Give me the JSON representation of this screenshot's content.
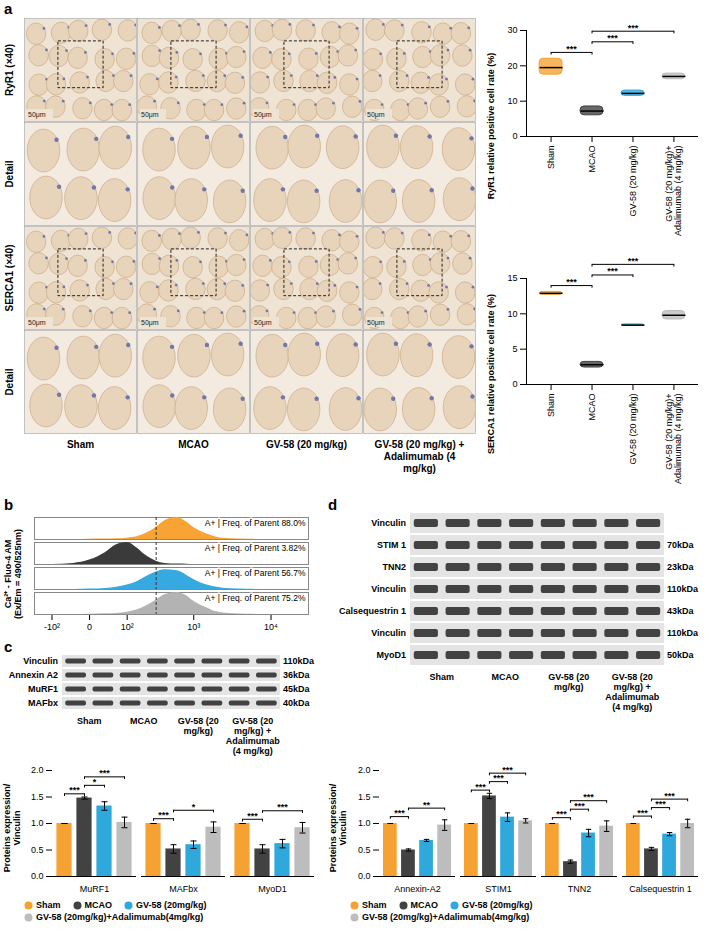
{
  "letters": [
    "a",
    "b",
    "c",
    "d"
  ],
  "groups": [
    "Sham",
    "MCAO",
    "GV-58 (20 mg/kg)",
    "GV-58 (20 mg/kg) + Adalimumab (4 mg/kg)"
  ],
  "ihc": {
    "row_labels": [
      "RyR1 (×40)",
      "Detail",
      "SERCA1 (×40)",
      "Detail"
    ],
    "scale_bar": "50μm"
  },
  "blot_c": {
    "rows": [
      {
        "label": "Vinculin",
        "size": "110kDa"
      },
      {
        "label": "Annexin A2",
        "size": "36kDa"
      },
      {
        "label": "MuRF1",
        "size": "45kDa"
      },
      {
        "label": "MAFbx",
        "size": "40kDa"
      }
    ]
  },
  "blot_d": {
    "rows": [
      {
        "label": "Vinculin"
      },
      {
        "label": "STIM 1",
        "size": "70kDa"
      },
      {
        "label": "TNN2",
        "size": "23kDa"
      },
      {
        "label": "Vinculin",
        "size": "110kDa"
      },
      {
        "label": "Calsequestrin 1",
        "size": "43kDa"
      },
      {
        "label": "Vinculin",
        "size": "110kDa"
      },
      {
        "label": "MyoD1",
        "size": "50kDa"
      }
    ]
  },
  "chart_data": [
    {
      "type": "violin",
      "y_label": "RyR1 relative positive cell rate (%)",
      "categories": [
        "Sham",
        "MCAO",
        "GV-58 (20 mg/kg)",
        "GV-58 (20 mg/kg)+ Adalimumab (4 mg/kg)"
      ],
      "values": [
        19.5,
        7.2,
        12.2,
        17.0
      ],
      "min": [
        17.5,
        6.0,
        11.5,
        16.2
      ],
      "max": [
        22.0,
        8.5,
        13.0,
        17.8
      ],
      "colors": [
        "#f5a233",
        "#424242",
        "#2fa8dc",
        "#bdbdbd"
      ],
      "ylim": [
        0,
        30
      ],
      "yticks": [
        0,
        10,
        20,
        30
      ],
      "annotations": [
        {
          "from": "Sham",
          "to": "MCAO",
          "label": "***"
        },
        {
          "from": "MCAO",
          "to": "GV-58 (20 mg/kg)",
          "label": "***"
        },
        {
          "from": "MCAO",
          "to": "GV-58 (20 mg/kg)+ Adalimumab (4 mg/kg)",
          "label": "***"
        }
      ]
    },
    {
      "type": "violin",
      "y_label": "SERCA1 relative positive cell rate (%)",
      "categories": [
        "Sham",
        "MCAO",
        "GV-58 (20 mg/kg)",
        "GV-58 (20 mg/kg)+ Adalimumab (4 mg/kg)"
      ],
      "values": [
        12.9,
        2.8,
        8.4,
        9.8
      ],
      "min": [
        12.7,
        2.4,
        8.3,
        9.2
      ],
      "max": [
        13.1,
        3.2,
        8.5,
        10.4
      ],
      "colors": [
        "#f5a233",
        "#424242",
        "#2fa8dc",
        "#bdbdbd"
      ],
      "ylim": [
        0,
        15
      ],
      "yticks": [
        0,
        5,
        10,
        15
      ],
      "annotations": [
        {
          "from": "Sham",
          "to": "MCAO",
          "label": "***"
        },
        {
          "from": "MCAO",
          "to": "GV-58 (20 mg/kg)",
          "label": "***"
        },
        {
          "from": "MCAO",
          "to": "GV-58 (20 mg/kg)+ Adalimumab (4 mg/kg)",
          "label": "***"
        }
      ]
    },
    {
      "type": "area",
      "y_label": "Ca²⁺ - Fluo-4 AM (Ex/Em = 490/525nm)",
      "x": [
        -100,
        -30,
        0,
        30,
        60,
        100,
        150,
        200,
        300,
        400,
        600,
        800,
        1000,
        1500,
        2000,
        3000,
        5000,
        10000
      ],
      "series": [
        {
          "name": "A+ | Freq. of Parent 88.0%",
          "color": "#f7a435",
          "values": [
            0,
            0,
            0.01,
            0.02,
            0.03,
            0.06,
            0.12,
            0.25,
            0.55,
            0.85,
            1.0,
            0.8,
            0.55,
            0.25,
            0.1,
            0.03,
            0.01,
            0
          ]
        },
        {
          "name": "A+ | Freq. of Parent 3.82%",
          "color": "#3a3a3a",
          "values": [
            0,
            0.05,
            0.2,
            0.55,
            0.9,
            1.0,
            0.75,
            0.45,
            0.15,
            0.05,
            0.02,
            0.01,
            0,
            0,
            0,
            0,
            0,
            0
          ]
        },
        {
          "name": "A+ | Freq. of Parent 56.7%",
          "color": "#35a9e0",
          "values": [
            0,
            0,
            0.02,
            0.05,
            0.1,
            0.2,
            0.35,
            0.55,
            0.8,
            0.9,
            0.85,
            0.65,
            0.45,
            0.2,
            0.1,
            0.03,
            0.01,
            0
          ]
        },
        {
          "name": "A+ | Freq. of Parent 75.2%",
          "color": "#b3b3b3",
          "values": [
            0,
            0,
            0.01,
            0.03,
            0.05,
            0.1,
            0.2,
            0.35,
            0.65,
            0.9,
            1.0,
            0.85,
            0.6,
            0.3,
            0.12,
            0.04,
            0.01,
            0
          ]
        }
      ],
      "xlim": [
        -200,
        30000
      ],
      "xticks": [
        {
          "value": -100,
          "label": "-10²"
        },
        0,
        {
          "value": 100,
          "label": "10²"
        },
        {
          "value": 1000,
          "label": "10³"
        },
        {
          "value": 10000,
          "label": "10⁴"
        }
      ],
      "ylim": [
        0,
        1
      ],
      "tick_labels": "x",
      "gate": 300
    },
    {
      "type": "bar",
      "y_label": "Proteins expression/ Vinculin",
      "categories": [
        "MuRF1",
        "MAFbx",
        "MyoD1"
      ],
      "series": [
        {
          "name": "Sham",
          "color": "#f5a233",
          "values": [
            1.0,
            1.0,
            1.0
          ],
          "errors": [
            0,
            0,
            0
          ]
        },
        {
          "name": "MCAO",
          "color": "#424242",
          "values": [
            1.48,
            0.52,
            0.52
          ],
          "errors": [
            0.02,
            0.08,
            0.08
          ]
        },
        {
          "name": "GV-58 (20mg/kg)",
          "color": "#2fa8dc",
          "values": [
            1.33,
            0.6,
            0.62
          ],
          "errors": [
            0.08,
            0.07,
            0.08
          ]
        },
        {
          "name": "GV-58 (20mg/kg)+Adalimumab(4mg/kg)",
          "color": "#bdbdbd",
          "values": [
            1.02,
            0.93,
            0.92
          ],
          "errors": [
            0.1,
            0.1,
            0.1
          ]
        }
      ],
      "ylim": [
        0,
        2
      ],
      "yticks": [
        {
          "value": 0,
          "label": "0.0"
        },
        0.5,
        {
          "value": 1,
          "label": "1.0"
        },
        1.5,
        {
          "value": 2,
          "label": "2.0"
        }
      ],
      "legend": "bottom",
      "annotations": [
        {
          "category": "MuRF1",
          "from": "Sham",
          "to": "MCAO",
          "label": "***"
        },
        {
          "category": "MuRF1",
          "from": "MCAO",
          "to": "GV-58 (20mg/kg)",
          "label": "*"
        },
        {
          "category": "MuRF1",
          "from": "MCAO",
          "to": "GV-58 (20mg/kg)+Adalimumab(4mg/kg)",
          "label": "***"
        },
        {
          "category": "MAFbx",
          "from": "Sham",
          "to": "MCAO",
          "label": "***"
        },
        {
          "category": "MAFbx",
          "from": "MCAO",
          "to": "GV-58 (20mg/kg)+Adalimumab(4mg/kg)",
          "label": "*"
        },
        {
          "category": "MyoD1",
          "from": "Sham",
          "to": "MCAO",
          "label": "***"
        },
        {
          "category": "MyoD1",
          "from": "MCAO",
          "to": "GV-58 (20mg/kg)+Adalimumab(4mg/kg)",
          "label": "***"
        }
      ]
    },
    {
      "type": "bar",
      "y_label": "Proteins expression/ Vinculin",
      "categories": [
        "Annexin-A2",
        "STIM1",
        "TNN2",
        "Calsequestrin 1"
      ],
      "series": [
        {
          "name": "Sham",
          "color": "#f5a233",
          "values": [
            1.0,
            1.0,
            1.0,
            1.0
          ],
          "errors": [
            0,
            0,
            0,
            0
          ]
        },
        {
          "name": "MCAO",
          "color": "#424242",
          "values": [
            0.5,
            1.52,
            0.28,
            0.52
          ],
          "errors": [
            0.02,
            0.05,
            0.03,
            0.03
          ]
        },
        {
          "name": "GV-58 (20mg/kg)",
          "color": "#2fa8dc",
          "values": [
            0.68,
            1.12,
            0.82,
            0.8
          ],
          "errors": [
            0.02,
            0.08,
            0.07,
            0.03
          ]
        },
        {
          "name": "GV-58 (20mg/kg)+Adalimumab(4mg/kg)",
          "color": "#bdbdbd",
          "values": [
            0.97,
            1.05,
            0.95,
            1.0
          ],
          "errors": [
            0.1,
            0.04,
            0.1,
            0.08
          ]
        }
      ],
      "ylim": [
        0,
        2
      ],
      "yticks": [
        {
          "value": 0,
          "label": "0.0"
        },
        0.5,
        {
          "value": 1,
          "label": "1.0"
        },
        1.5,
        {
          "value": 2,
          "label": "2.0"
        }
      ],
      "legend": "bottom",
      "annotations": [
        {
          "category": "Annexin-A2",
          "from": "Sham",
          "to": "MCAO",
          "label": "***"
        },
        {
          "category": "Annexin-A2",
          "from": "MCAO",
          "to": "GV-58 (20mg/kg)+Adalimumab(4mg/kg)",
          "label": "**"
        },
        {
          "category": "STIM1",
          "from": "Sham",
          "to": "MCAO",
          "label": "***"
        },
        {
          "category": "STIM1",
          "from": "MCAO",
          "to": "GV-58 (20mg/kg)",
          "label": "***"
        },
        {
          "category": "STIM1",
          "from": "MCAO",
          "to": "GV-58 (20mg/kg)+Adalimumab(4mg/kg)",
          "label": "***"
        },
        {
          "category": "TNN2",
          "from": "Sham",
          "to": "MCAO",
          "label": "***"
        },
        {
          "category": "TNN2",
          "from": "MCAO",
          "to": "GV-58 (20mg/kg)",
          "label": "***"
        },
        {
          "category": "TNN2",
          "from": "MCAO",
          "to": "GV-58 (20mg/kg)+Adalimumab(4mg/kg)",
          "label": "***"
        },
        {
          "category": "Calsequestrin 1",
          "from": "Sham",
          "to": "MCAO",
          "label": "***"
        },
        {
          "category": "Calsequestrin 1",
          "from": "MCAO",
          "to": "GV-58 (20mg/kg)",
          "label": "***"
        },
        {
          "category": "Calsequestrin 1",
          "from": "MCAO",
          "to": "GV-58 (20mg/kg)+Adalimumab(4mg/kg)",
          "label": "***"
        }
      ]
    }
  ]
}
